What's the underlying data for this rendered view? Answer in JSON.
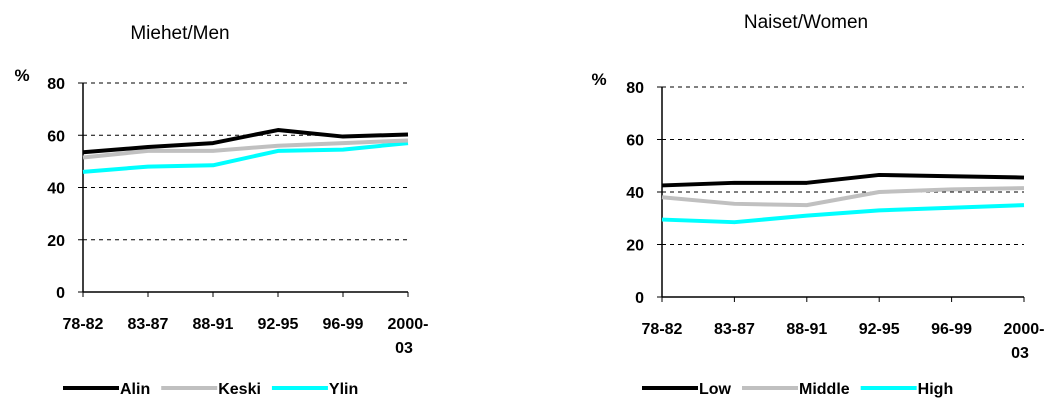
{
  "chart_data": [
    {
      "type": "line",
      "title": "Miehet/Men",
      "ylabel": "%",
      "xlabel": "",
      "categories": [
        "78-82",
        "83-87",
        "88-91",
        "92-95",
        "96-99",
        "2000-03"
      ],
      "category_lines": [
        [
          "78-82"
        ],
        [
          "83-87"
        ],
        [
          "88-91"
        ],
        [
          "92-95"
        ],
        [
          "96-99"
        ],
        [
          "2000-",
          "03"
        ]
      ],
      "ylim": [
        0,
        80
      ],
      "yticks": [
        0,
        20,
        40,
        60,
        80
      ],
      "grid": "horizontal-dashed",
      "legend": "bottom",
      "series": [
        {
          "name": "Alin",
          "color": "#000000",
          "values": [
            53.5,
            55.5,
            57,
            62,
            59.5,
            60.3
          ]
        },
        {
          "name": "Keski",
          "color": "#c0c0c0",
          "values": [
            51.5,
            54,
            54,
            56,
            57,
            58
          ]
        },
        {
          "name": "Ylin",
          "color": "#00ffff",
          "values": [
            46,
            48,
            48.5,
            54,
            54.5,
            57
          ]
        }
      ]
    },
    {
      "type": "line",
      "title": "Naiset/Women",
      "ylabel": "%",
      "xlabel": "",
      "categories": [
        "78-82",
        "83-87",
        "88-91",
        "92-95",
        "96-99",
        "2000-03"
      ],
      "category_lines": [
        [
          "78-82"
        ],
        [
          "83-87"
        ],
        [
          "88-91"
        ],
        [
          "92-95"
        ],
        [
          "96-99"
        ],
        [
          "2000-",
          "03"
        ]
      ],
      "ylim": [
        0,
        80
      ],
      "yticks": [
        0,
        20,
        40,
        60,
        80
      ],
      "grid": "horizontal-dashed",
      "legend": "bottom",
      "series": [
        {
          "name": "Low",
          "color": "#000000",
          "values": [
            42.5,
            43.5,
            43.5,
            46.5,
            46,
            45.5
          ]
        },
        {
          "name": "Middle",
          "color": "#c0c0c0",
          "values": [
            38,
            35.5,
            35,
            40,
            41,
            41.5
          ]
        },
        {
          "name": "High",
          "color": "#00ffff",
          "values": [
            29.5,
            28.5,
            31,
            33,
            34,
            35
          ]
        }
      ]
    }
  ]
}
